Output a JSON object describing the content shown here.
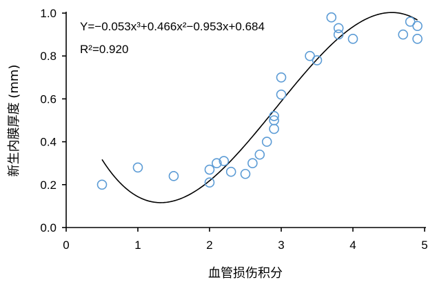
{
  "chart_data": {
    "type": "scatter",
    "xlabel": "血管损伤积分",
    "ylabel": "新生内膜厚度 (mm)",
    "xlim": [
      0,
      5
    ],
    "ylim": [
      0,
      1.0
    ],
    "xticks": [
      "0",
      "1",
      "2",
      "3",
      "4",
      "5"
    ],
    "yticks": [
      "0.0",
      "0.2",
      "0.4",
      "0.6",
      "0.8",
      "1.0"
    ],
    "grid": false,
    "equation": "Y=−0.053x³+0.466x²−0.953x+0.684",
    "r_squared": "R²=0.920",
    "fit_coefficients": [
      -0.053,
      0.466,
      -0.953,
      0.684
    ],
    "fit_range": [
      0.5,
      4.9
    ],
    "points": [
      {
        "x": 0.5,
        "y": 0.2
      },
      {
        "x": 1.0,
        "y": 0.28
      },
      {
        "x": 1.5,
        "y": 0.24
      },
      {
        "x": 2.0,
        "y": 0.21
      },
      {
        "x": 2.0,
        "y": 0.27
      },
      {
        "x": 2.1,
        "y": 0.3
      },
      {
        "x": 2.2,
        "y": 0.31
      },
      {
        "x": 2.3,
        "y": 0.26
      },
      {
        "x": 2.5,
        "y": 0.25
      },
      {
        "x": 2.6,
        "y": 0.3
      },
      {
        "x": 2.7,
        "y": 0.34
      },
      {
        "x": 2.8,
        "y": 0.4
      },
      {
        "x": 2.9,
        "y": 0.46
      },
      {
        "x": 2.9,
        "y": 0.5
      },
      {
        "x": 2.9,
        "y": 0.52
      },
      {
        "x": 3.0,
        "y": 0.62
      },
      {
        "x": 3.0,
        "y": 0.7
      },
      {
        "x": 3.4,
        "y": 0.8
      },
      {
        "x": 3.5,
        "y": 0.78
      },
      {
        "x": 3.7,
        "y": 0.98
      },
      {
        "x": 3.8,
        "y": 0.93
      },
      {
        "x": 3.8,
        "y": 0.9
      },
      {
        "x": 4.0,
        "y": 0.88
      },
      {
        "x": 4.7,
        "y": 0.9
      },
      {
        "x": 4.8,
        "y": 0.96
      },
      {
        "x": 4.9,
        "y": 0.94
      },
      {
        "x": 4.9,
        "y": 0.88
      }
    ],
    "colors": {
      "points": "#5b9bd5",
      "fit": "#000000"
    }
  }
}
